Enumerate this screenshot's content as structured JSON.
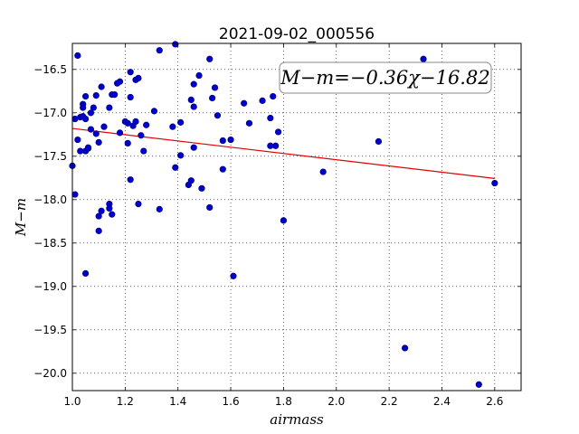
{
  "chart_data": {
    "type": "scatter",
    "title": "2021-09-02_000556",
    "xlabel": "airmass",
    "ylabel": "M−m",
    "xlim": [
      1.0,
      2.7
    ],
    "ylim": [
      -20.2,
      -16.2
    ],
    "y_inverted": true,
    "grid": true,
    "x_ticks": [
      1.0,
      1.2,
      1.4,
      1.6,
      1.8,
      2.0,
      2.2,
      2.4,
      2.6
    ],
    "x_tick_labels": [
      "1.0",
      "1.2",
      "1.4",
      "1.6",
      "1.8",
      "2.0",
      "2.2",
      "2.4",
      "2.6"
    ],
    "y_ticks": [
      -16.5,
      -17.0,
      -17.5,
      -18.0,
      -18.5,
      -19.0,
      -19.5,
      -20.0
    ],
    "y_tick_labels": [
      "−16.5",
      "−17.0",
      "−17.5",
      "−18.0",
      "−18.5",
      "−19.0",
      "−19.5",
      "−20.0"
    ],
    "annotation": "M−m=−0.36χ−16.82",
    "fit": {
      "slope": -0.36,
      "intercept": -16.82,
      "x_range": [
        1.0,
        2.6
      ]
    },
    "colors": {
      "points": "#0000cc",
      "fit": "#e00000"
    },
    "series": [
      {
        "values": [
          [
            1.0,
            -17.61
          ],
          [
            1.01,
            -17.07
          ],
          [
            1.01,
            -17.94
          ],
          [
            1.02,
            -16.34
          ],
          [
            1.02,
            -17.31
          ],
          [
            1.03,
            -17.05
          ],
          [
            1.03,
            -17.44
          ],
          [
            1.04,
            -16.9
          ],
          [
            1.04,
            -16.94
          ],
          [
            1.04,
            -17.04
          ],
          [
            1.05,
            -16.81
          ],
          [
            1.05,
            -17.44
          ],
          [
            1.05,
            -17.07
          ],
          [
            1.05,
            -18.85
          ],
          [
            1.06,
            -17.41
          ],
          [
            1.06,
            -17.4
          ],
          [
            1.07,
            -17.19
          ],
          [
            1.07,
            -17.0
          ],
          [
            1.08,
            -16.94
          ],
          [
            1.09,
            -17.24
          ],
          [
            1.09,
            -16.8
          ],
          [
            1.1,
            -17.34
          ],
          [
            1.1,
            -18.19
          ],
          [
            1.1,
            -18.36
          ],
          [
            1.11,
            -16.7
          ],
          [
            1.11,
            -18.13
          ],
          [
            1.12,
            -17.16
          ],
          [
            1.14,
            -18.05
          ],
          [
            1.14,
            -18.1
          ],
          [
            1.14,
            -16.94
          ],
          [
            1.15,
            -18.17
          ],
          [
            1.15,
            -16.79
          ],
          [
            1.16,
            -16.79
          ],
          [
            1.17,
            -16.66
          ],
          [
            1.18,
            -17.23
          ],
          [
            1.18,
            -16.64
          ],
          [
            1.2,
            -17.1
          ],
          [
            1.21,
            -17.35
          ],
          [
            1.21,
            -17.12
          ],
          [
            1.22,
            -16.82
          ],
          [
            1.22,
            -17.77
          ],
          [
            1.22,
            -16.53
          ],
          [
            1.23,
            -17.15
          ],
          [
            1.24,
            -17.1
          ],
          [
            1.24,
            -16.62
          ],
          [
            1.25,
            -18.05
          ],
          [
            1.25,
            -16.6
          ],
          [
            1.26,
            -17.26
          ],
          [
            1.27,
            -17.44
          ],
          [
            1.28,
            -17.14
          ],
          [
            1.31,
            -16.98
          ],
          [
            1.33,
            -16.28
          ],
          [
            1.33,
            -18.11
          ],
          [
            1.38,
            -17.16
          ],
          [
            1.39,
            -17.63
          ],
          [
            1.39,
            -16.21
          ],
          [
            1.41,
            -17.49
          ],
          [
            1.41,
            -17.11
          ],
          [
            1.44,
            -17.83
          ],
          [
            1.45,
            -16.85
          ],
          [
            1.45,
            -17.78
          ],
          [
            1.46,
            -16.93
          ],
          [
            1.46,
            -16.67
          ],
          [
            1.46,
            -17.4
          ],
          [
            1.48,
            -16.57
          ],
          [
            1.49,
            -17.87
          ],
          [
            1.52,
            -16.38
          ],
          [
            1.52,
            -18.09
          ],
          [
            1.53,
            -16.83
          ],
          [
            1.54,
            -16.71
          ],
          [
            1.55,
            -17.03
          ],
          [
            1.57,
            -17.32
          ],
          [
            1.57,
            -17.65
          ],
          [
            1.6,
            -17.31
          ],
          [
            1.61,
            -18.88
          ],
          [
            1.65,
            -16.89
          ],
          [
            1.67,
            -17.12
          ],
          [
            1.72,
            -16.86
          ],
          [
            1.75,
            -17.06
          ],
          [
            1.75,
            -17.38
          ],
          [
            1.76,
            -16.81
          ],
          [
            1.77,
            -17.38
          ],
          [
            1.78,
            -17.22
          ],
          [
            1.8,
            -18.24
          ],
          [
            1.95,
            -17.68
          ],
          [
            2.16,
            -17.33
          ],
          [
            2.26,
            -19.71
          ],
          [
            2.33,
            -16.38
          ],
          [
            2.54,
            -20.13
          ],
          [
            2.6,
            -17.81
          ]
        ]
      }
    ]
  }
}
